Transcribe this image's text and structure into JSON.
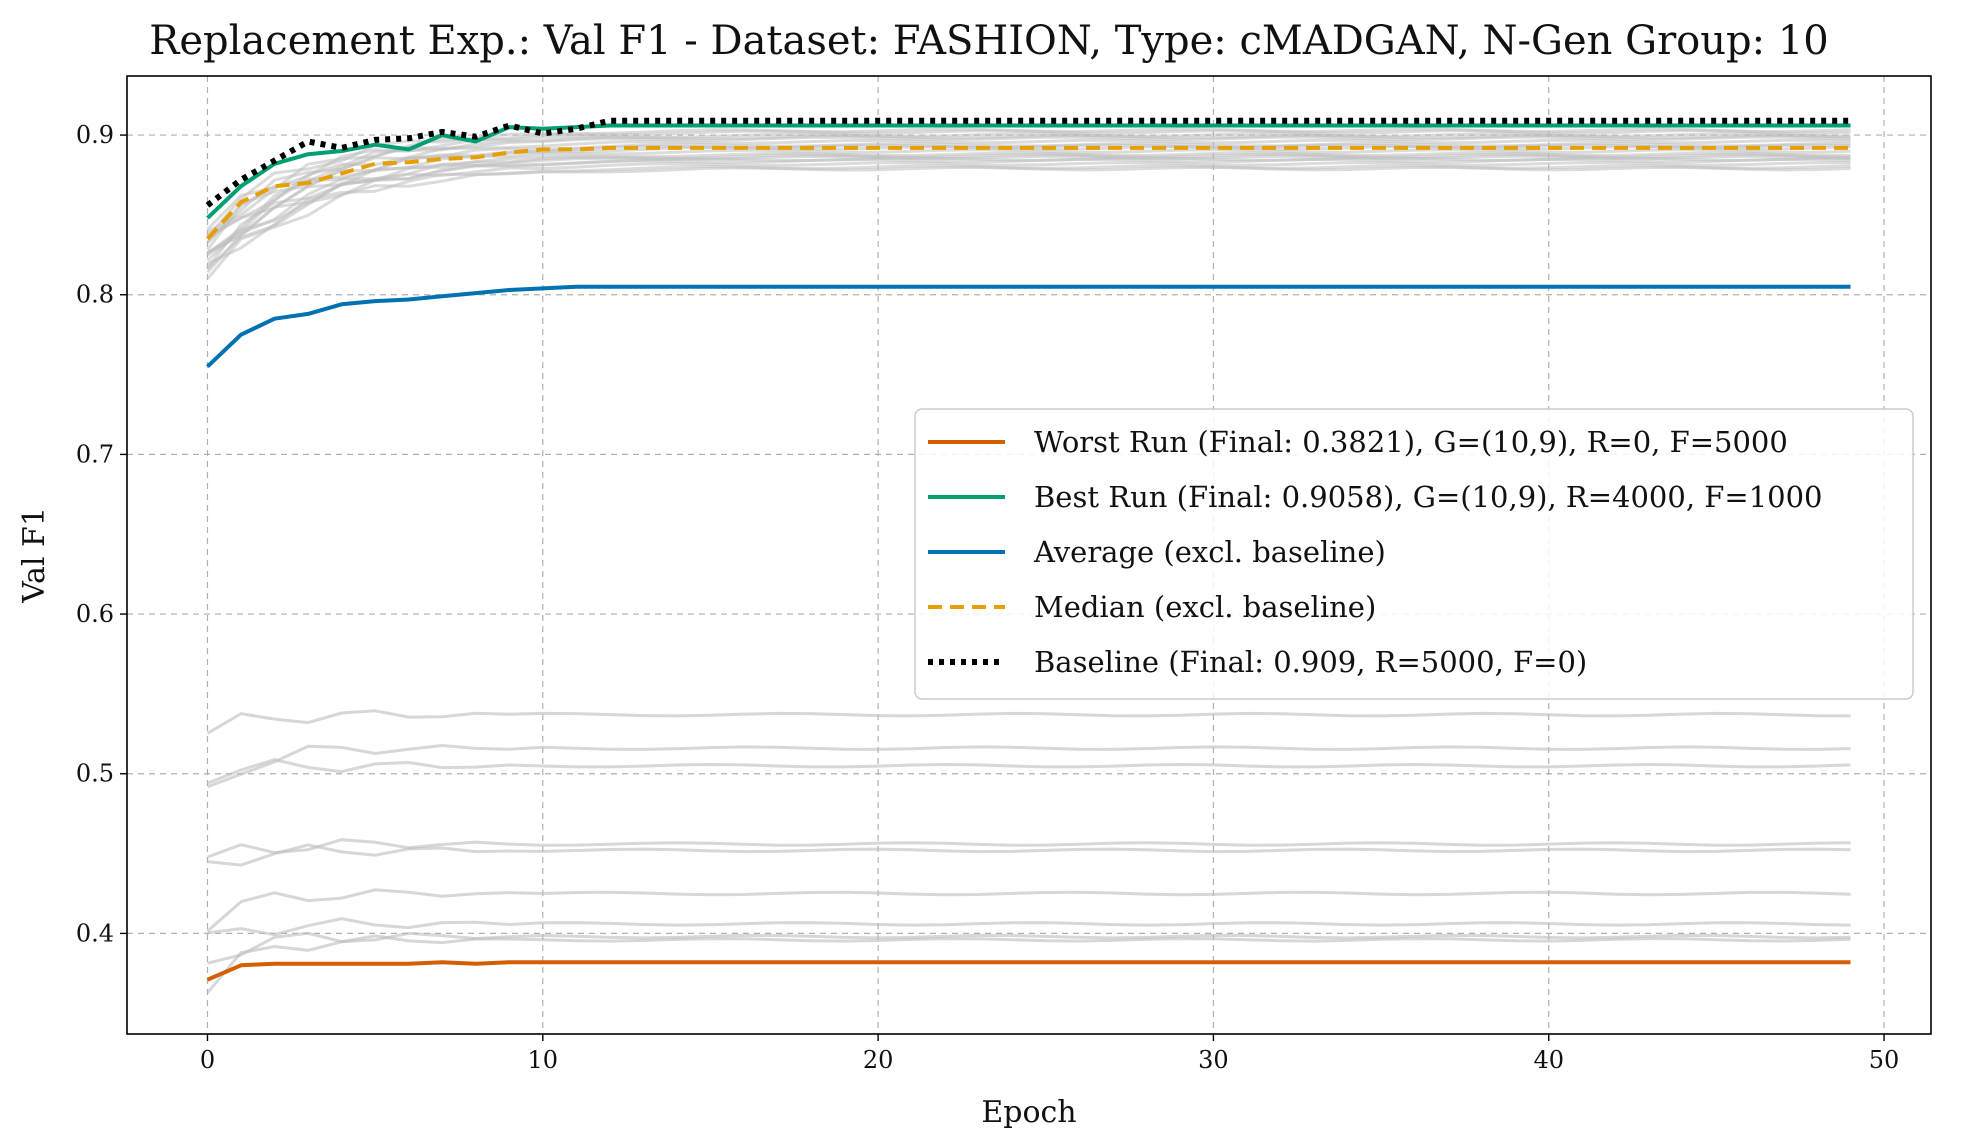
{
  "chart_data": {
    "type": "line",
    "title": "Replacement Exp.: Val F1 - Dataset: FASHION, Type: cMADGAN, N-Gen Group: 10",
    "xlabel": "Epoch",
    "ylabel": "Val F1",
    "xlim": [
      -2.4,
      51.4
    ],
    "ylim": [
      0.337,
      0.937
    ],
    "x_ticks": [
      0,
      10,
      20,
      30,
      40,
      50
    ],
    "y_ticks": [
      0.4,
      0.5,
      0.6,
      0.7,
      0.8,
      0.9
    ],
    "grid": true,
    "legend_placement": "center-right",
    "series": [
      {
        "name": "Worst Run (Final: 0.3821), G=(10,9), R=0, F=5000",
        "color": "#d55e00",
        "style": "solid",
        "values": [
          0.371,
          0.38,
          0.381,
          0.381,
          0.381,
          0.381,
          0.381,
          0.382,
          0.381,
          0.382,
          0.382,
          0.382,
          0.382,
          0.382,
          0.382,
          0.382,
          0.382,
          0.382,
          0.382,
          0.382,
          0.382,
          0.382,
          0.382,
          0.382,
          0.382,
          0.382,
          0.382,
          0.382,
          0.382,
          0.382,
          0.382,
          0.382,
          0.382,
          0.382,
          0.382,
          0.382,
          0.382,
          0.382,
          0.382,
          0.382,
          0.382,
          0.382,
          0.382,
          0.382,
          0.382,
          0.382,
          0.382,
          0.382,
          0.382,
          0.382
        ]
      },
      {
        "name": "Best Run (Final: 0.9058), G=(10,9), R=4000, F=1000",
        "color": "#009e73",
        "style": "solid",
        "values": [
          0.848,
          0.868,
          0.882,
          0.888,
          0.89,
          0.894,
          0.891,
          0.9,
          0.896,
          0.905,
          0.904,
          0.905,
          0.906,
          0.906,
          0.906,
          0.906,
          0.906,
          0.906,
          0.906,
          0.906,
          0.906,
          0.906,
          0.906,
          0.906,
          0.906,
          0.906,
          0.906,
          0.906,
          0.906,
          0.906,
          0.906,
          0.906,
          0.906,
          0.906,
          0.906,
          0.906,
          0.906,
          0.906,
          0.906,
          0.906,
          0.906,
          0.906,
          0.906,
          0.906,
          0.906,
          0.906,
          0.906,
          0.906,
          0.906,
          0.906
        ]
      },
      {
        "name": "Average (excl. baseline)",
        "color": "#0072b2",
        "style": "solid",
        "values": [
          0.755,
          0.775,
          0.785,
          0.788,
          0.794,
          0.796,
          0.797,
          0.799,
          0.801,
          0.803,
          0.804,
          0.805,
          0.805,
          0.805,
          0.805,
          0.805,
          0.805,
          0.805,
          0.805,
          0.805,
          0.805,
          0.805,
          0.805,
          0.805,
          0.805,
          0.805,
          0.805,
          0.805,
          0.805,
          0.805,
          0.805,
          0.805,
          0.805,
          0.805,
          0.805,
          0.805,
          0.805,
          0.805,
          0.805,
          0.805,
          0.805,
          0.805,
          0.805,
          0.805,
          0.805,
          0.805,
          0.805,
          0.805,
          0.805,
          0.805
        ]
      },
      {
        "name": "Median (excl. baseline)",
        "color": "#e69f00",
        "style": "dashed",
        "values": [
          0.835,
          0.858,
          0.868,
          0.87,
          0.876,
          0.882,
          0.883,
          0.885,
          0.886,
          0.889,
          0.891,
          0.891,
          0.892,
          0.892,
          0.892,
          0.892,
          0.892,
          0.892,
          0.892,
          0.892,
          0.892,
          0.892,
          0.892,
          0.892,
          0.892,
          0.892,
          0.892,
          0.892,
          0.892,
          0.892,
          0.892,
          0.892,
          0.892,
          0.892,
          0.892,
          0.892,
          0.892,
          0.892,
          0.892,
          0.892,
          0.892,
          0.892,
          0.892,
          0.892,
          0.892,
          0.892,
          0.892,
          0.892,
          0.892,
          0.892
        ]
      },
      {
        "name": "Baseline (Final: 0.909, R=5000, F=0)",
        "color": "#000000",
        "style": "dotted",
        "values": [
          0.856,
          0.872,
          0.884,
          0.896,
          0.892,
          0.897,
          0.898,
          0.902,
          0.899,
          0.906,
          0.901,
          0.904,
          0.909,
          0.909,
          0.909,
          0.909,
          0.909,
          0.909,
          0.909,
          0.909,
          0.909,
          0.909,
          0.909,
          0.909,
          0.909,
          0.909,
          0.909,
          0.909,
          0.909,
          0.909,
          0.909,
          0.909,
          0.909,
          0.909,
          0.909,
          0.909,
          0.909,
          0.909,
          0.909,
          0.909,
          0.909,
          0.909,
          0.909,
          0.909,
          0.909,
          0.909,
          0.909,
          0.909,
          0.909,
          0.909
        ]
      }
    ],
    "background_runs": {
      "color": "#bdbdbd",
      "upper_group": [
        {
          "start": 0.81,
          "plateau": 0.879
        },
        {
          "start": 0.815,
          "plateau": 0.88
        },
        {
          "start": 0.82,
          "plateau": 0.882
        },
        {
          "start": 0.818,
          "plateau": 0.884
        },
        {
          "start": 0.825,
          "plateau": 0.886
        },
        {
          "start": 0.822,
          "plateau": 0.888
        },
        {
          "start": 0.83,
          "plateau": 0.89
        },
        {
          "start": 0.828,
          "plateau": 0.892
        },
        {
          "start": 0.835,
          "plateau": 0.894
        },
        {
          "start": 0.832,
          "plateau": 0.896
        },
        {
          "start": 0.838,
          "plateau": 0.898
        },
        {
          "start": 0.84,
          "plateau": 0.9
        },
        {
          "start": 0.836,
          "plateau": 0.902
        },
        {
          "start": 0.842,
          "plateau": 0.903
        },
        {
          "start": 0.812,
          "plateau": 0.885
        },
        {
          "start": 0.826,
          "plateau": 0.893
        },
        {
          "start": 0.833,
          "plateau": 0.899
        },
        {
          "start": 0.819,
          "plateau": 0.887
        }
      ],
      "lower_group": [
        {
          "start": 0.526,
          "plateau": 0.537
        },
        {
          "start": 0.487,
          "plateau": 0.516
        },
        {
          "start": 0.5,
          "plateau": 0.505
        },
        {
          "start": 0.445,
          "plateau": 0.456
        },
        {
          "start": 0.443,
          "plateau": 0.452
        },
        {
          "start": 0.407,
          "plateau": 0.425
        },
        {
          "start": 0.395,
          "plateau": 0.406
        },
        {
          "start": 0.383,
          "plateau": 0.398
        },
        {
          "start": 0.366,
          "plateau": 0.396
        }
      ]
    }
  }
}
